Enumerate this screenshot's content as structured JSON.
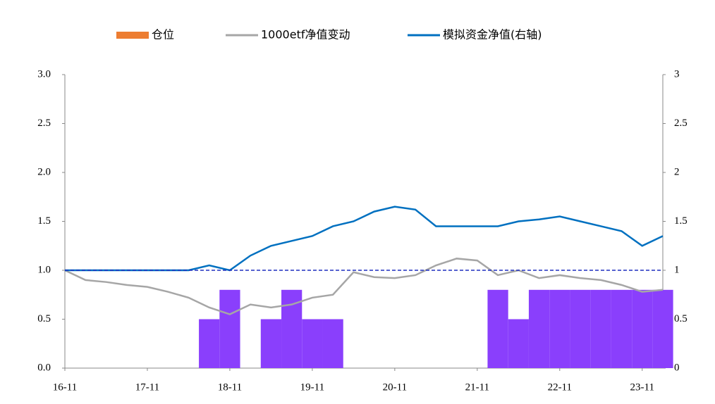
{
  "chart_data": {
    "type": "combo",
    "legend_position": "top",
    "categories": [
      "16-11",
      null,
      null,
      null,
      "17-11",
      null,
      null,
      null,
      "18-11",
      null,
      null,
      null,
      "19-11",
      null,
      null,
      null,
      "20-11",
      null,
      null,
      null,
      "21-11",
      null,
      null,
      null,
      "22-11",
      null,
      null,
      null,
      "23-11",
      null
    ],
    "series": [
      {
        "name": "仓位",
        "kind": "area_step",
        "color": "#ed7d31",
        "fill": "#8a3ffc",
        "axis": "y",
        "values": [
          0,
          0,
          0,
          0,
          0,
          0,
          0,
          0.5,
          0.8,
          0,
          0.5,
          0.8,
          0.5,
          0.5,
          0,
          0,
          0,
          0,
          0,
          0,
          0,
          0.8,
          0.5,
          0.8,
          0.8,
          0.8,
          0.8,
          0.8,
          0.8,
          0.8
        ]
      },
      {
        "name": "1000etf净值变动",
        "kind": "line",
        "color": "#a6a6a6",
        "axis": "y",
        "values": [
          1.0,
          0.9,
          0.88,
          0.85,
          0.83,
          0.78,
          0.72,
          0.62,
          0.55,
          0.65,
          0.62,
          0.65,
          0.72,
          0.75,
          0.98,
          0.93,
          0.92,
          0.95,
          1.05,
          1.12,
          1.1,
          0.95,
          1.0,
          0.92,
          0.95,
          0.92,
          0.9,
          0.85,
          0.78,
          0.8
        ]
      },
      {
        "name": "模拟资金净值(右轴)",
        "kind": "line",
        "color": "#0070c0",
        "axis": "y2",
        "values": [
          1.0,
          1.0,
          1.0,
          1.0,
          1.0,
          1.0,
          1.0,
          1.05,
          1.0,
          1.15,
          1.25,
          1.3,
          1.35,
          1.45,
          1.5,
          1.6,
          1.65,
          1.62,
          1.45,
          1.45,
          1.45,
          1.45,
          1.5,
          1.52,
          1.55,
          1.5,
          1.45,
          1.4,
          1.25,
          1.35
        ]
      }
    ],
    "reference_line": 1,
    "ylim": [
      0,
      3
    ],
    "yticks": [
      {
        "value": 0,
        "label": "0.0"
      },
      {
        "value": 0.5,
        "label": "0.5"
      },
      {
        "value": 1,
        "label": "1.0"
      },
      {
        "value": 1.5,
        "label": "1.5"
      },
      {
        "value": 2,
        "label": "2.0"
      },
      {
        "value": 2.5,
        "label": "2.5"
      },
      {
        "value": 3,
        "label": "3.0"
      }
    ],
    "y2lim": [
      0,
      3
    ],
    "y2ticks": [
      0,
      0.5,
      1,
      1.5,
      2,
      2.5,
      3
    ]
  }
}
